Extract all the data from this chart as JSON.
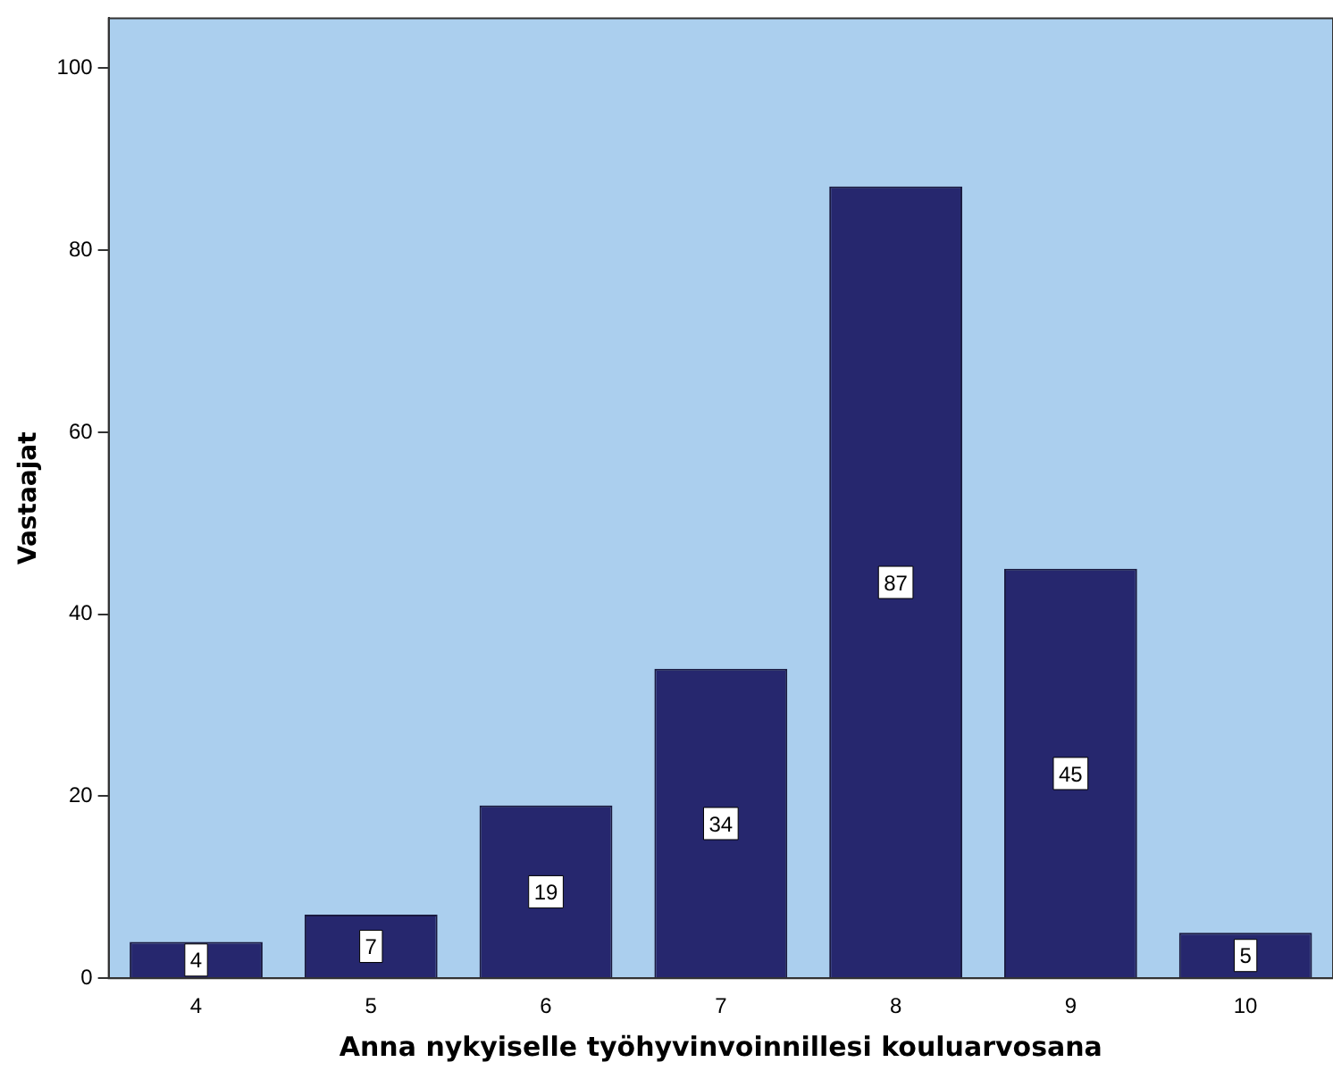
{
  "chart_data": {
    "type": "bar",
    "xlabel": "Anna nykyiselle työhyvinvoinnillesi kouluarvosana",
    "ylabel": "Vastaajat",
    "categories": [
      "4",
      "5",
      "6",
      "7",
      "8",
      "9",
      "10"
    ],
    "values": [
      4,
      7,
      19,
      34,
      87,
      45,
      5
    ],
    "color": "#26276e",
    "ylim": [
      0,
      105.5
    ],
    "yticks": [
      0,
      20,
      40,
      60,
      80,
      100
    ],
    "grid": false,
    "data_labels": true
  }
}
